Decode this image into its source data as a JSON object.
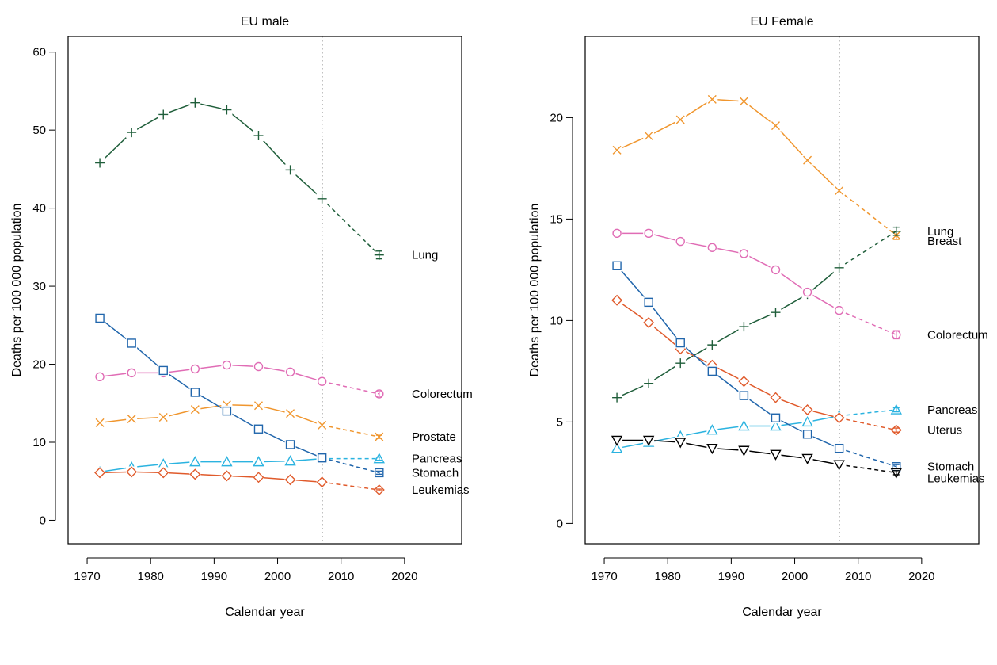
{
  "chart_data": [
    {
      "type": "line",
      "title": "EU male",
      "xlabel": "Calendar year",
      "ylabel": "Deaths per 100 000 population",
      "xlim": [
        1967,
        2029
      ],
      "ylim": [
        -3,
        62
      ],
      "xticks": [
        1970,
        1980,
        1990,
        2000,
        2010,
        2020
      ],
      "yticks": [
        0,
        10,
        20,
        30,
        40,
        50,
        60
      ],
      "reference_line_x": 2007,
      "series": [
        {
          "name": "Lung",
          "color": "#1f5e3a",
          "marker": "plus",
          "x": [
            1972,
            1977,
            1982,
            1987,
            1992,
            1997,
            2002,
            2007
          ],
          "y": [
            45.8,
            49.7,
            52.0,
            53.5,
            52.6,
            49.3,
            44.9,
            41.2
          ],
          "prediction_x": 2016,
          "prediction_y": 34.0,
          "prediction_range": [
            33.5,
            34.5
          ]
        },
        {
          "name": "Colorectum",
          "color": "#e06cb5",
          "marker": "circle",
          "x": [
            1972,
            1977,
            1982,
            1987,
            1992,
            1997,
            2002,
            2007
          ],
          "y": [
            18.4,
            18.9,
            18.9,
            19.4,
            19.9,
            19.7,
            19.0,
            17.8
          ],
          "prediction_x": 2016,
          "prediction_y": 16.2,
          "prediction_range": [
            15.9,
            16.5
          ]
        },
        {
          "name": "Prostate",
          "color": "#f0962e",
          "marker": "x",
          "x": [
            1972,
            1977,
            1982,
            1987,
            1992,
            1997,
            2002,
            2007
          ],
          "y": [
            12.5,
            13.0,
            13.2,
            14.2,
            14.8,
            14.7,
            13.7,
            12.2
          ],
          "prediction_x": 2016,
          "prediction_y": 10.7,
          "prediction_range": [
            10.5,
            10.9
          ]
        },
        {
          "name": "Pancreas",
          "color": "#2bb3e0",
          "marker": "triangle-up",
          "x": [
            1972,
            1977,
            1982,
            1987,
            1992,
            1997,
            2002,
            2007
          ],
          "y": [
            6.2,
            6.8,
            7.2,
            7.5,
            7.5,
            7.5,
            7.6,
            7.9
          ],
          "prediction_x": 2016,
          "prediction_y": 7.9,
          "prediction_range": [
            7.7,
            8.1
          ]
        },
        {
          "name": "Stomach",
          "color": "#2166ac",
          "marker": "square",
          "x": [
            1972,
            1977,
            1982,
            1987,
            1992,
            1997,
            2002,
            2007
          ],
          "y": [
            25.9,
            22.7,
            19.2,
            16.4,
            14.0,
            11.7,
            9.7,
            8.0
          ],
          "prediction_x": 2016,
          "prediction_y": 6.1,
          "prediction_range": [
            5.9,
            6.3
          ]
        },
        {
          "name": "Leukemias",
          "color": "#e05a2b",
          "marker": "diamond",
          "x": [
            1972,
            1977,
            1982,
            1987,
            1992,
            1997,
            2002,
            2007
          ],
          "y": [
            6.1,
            6.2,
            6.1,
            5.9,
            5.7,
            5.5,
            5.2,
            4.9
          ],
          "prediction_x": 2016,
          "prediction_y": 3.9,
          "prediction_range": [
            3.8,
            4.0
          ]
        }
      ]
    },
    {
      "type": "line",
      "title": "EU Female",
      "xlabel": "Calendar year",
      "ylabel": "Deaths per 100 000 population",
      "xlim": [
        1967,
        2029
      ],
      "ylim": [
        -1,
        24
      ],
      "xticks": [
        1970,
        1980,
        1990,
        2000,
        2010,
        2020
      ],
      "yticks": [
        0,
        5,
        10,
        15,
        20
      ],
      "reference_line_x": 2007,
      "series": [
        {
          "name": "Breast",
          "color": "#f0962e",
          "marker": "x",
          "x": [
            1972,
            1977,
            1982,
            1987,
            1992,
            1997,
            2002,
            2007
          ],
          "y": [
            18.4,
            19.1,
            19.9,
            20.9,
            20.8,
            19.6,
            17.9,
            16.4
          ],
          "prediction_x": 2016,
          "prediction_y": 14.2,
          "prediction_range": [
            14.0,
            14.4
          ]
        },
        {
          "name": "Lung",
          "color": "#1f5e3a",
          "marker": "plus",
          "x": [
            1972,
            1977,
            1982,
            1987,
            1992,
            1997,
            2002,
            2007
          ],
          "y": [
            6.2,
            6.9,
            7.9,
            8.8,
            9.7,
            10.4,
            11.3,
            12.6
          ],
          "prediction_x": 2016,
          "prediction_y": 14.4,
          "prediction_range": [
            14.2,
            14.6
          ]
        },
        {
          "name": "Colorectum",
          "color": "#e06cb5",
          "marker": "circle",
          "x": [
            1972,
            1977,
            1982,
            1987,
            1992,
            1997,
            2002,
            2007
          ],
          "y": [
            14.3,
            14.3,
            13.9,
            13.6,
            13.3,
            12.5,
            11.4,
            10.5
          ],
          "prediction_x": 2016,
          "prediction_y": 9.3,
          "prediction_range": [
            9.1,
            9.5
          ]
        },
        {
          "name": "Pancreas",
          "color": "#2bb3e0",
          "marker": "triangle-up",
          "x": [
            1972,
            1977,
            1982,
            1987,
            1992,
            1997,
            2002,
            2007
          ],
          "y": [
            3.7,
            4.0,
            4.3,
            4.6,
            4.8,
            4.8,
            5.0,
            5.3
          ],
          "prediction_x": 2016,
          "prediction_y": 5.6,
          "prediction_range": [
            5.5,
            5.7
          ]
        },
        {
          "name": "Uterus",
          "color": "#e05a2b",
          "marker": "diamond",
          "x": [
            1972,
            1977,
            1982,
            1987,
            1992,
            1997,
            2002,
            2007
          ],
          "y": [
            11.0,
            9.9,
            8.6,
            7.8,
            7.0,
            6.2,
            5.6,
            5.2
          ],
          "prediction_x": 2016,
          "prediction_y": 4.6,
          "prediction_range": [
            4.5,
            4.7
          ]
        },
        {
          "name": "Stomach",
          "color": "#2166ac",
          "marker": "square",
          "x": [
            1972,
            1977,
            1982,
            1987,
            1992,
            1997,
            2002,
            2007
          ],
          "y": [
            12.7,
            10.9,
            8.9,
            7.5,
            6.3,
            5.2,
            4.4,
            3.7
          ],
          "prediction_x": 2016,
          "prediction_y": 2.8,
          "prediction_range": [
            2.7,
            2.9
          ]
        },
        {
          "name": "Leukemias",
          "color": "#000000",
          "marker": "triangle-down",
          "x": [
            1972,
            1977,
            1982,
            1987,
            1992,
            1997,
            2002,
            2007
          ],
          "y": [
            4.1,
            4.1,
            4.0,
            3.7,
            3.6,
            3.4,
            3.2,
            2.9
          ],
          "prediction_x": 2016,
          "prediction_y": 2.5,
          "prediction_range": [
            2.4,
            2.6
          ]
        }
      ]
    }
  ]
}
